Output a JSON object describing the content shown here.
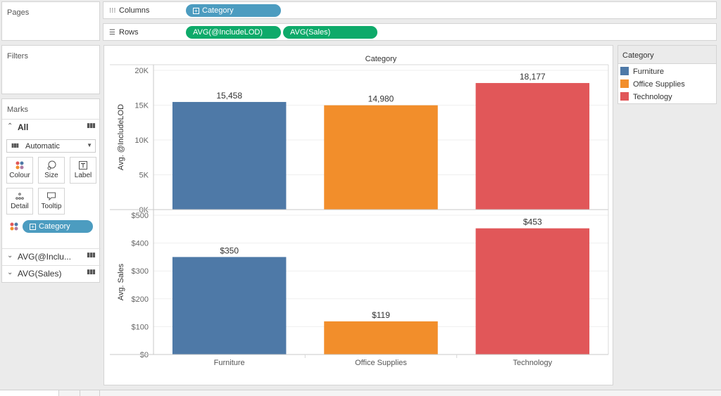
{
  "left_pane": {
    "pages_title": "Pages",
    "filters_title": "Filters",
    "marks_title": "Marks",
    "all_label": "All",
    "mark_type": "Automatic",
    "buttons": {
      "colour": "Colour",
      "size": "Size",
      "label": "Label",
      "detail": "Detail",
      "tooltip": "Tooltip"
    },
    "colour_pill": "Category",
    "measure_rows": [
      "AVG(@Inclu...",
      "AVG(Sales)"
    ]
  },
  "shelves": {
    "columns_label": "Columns",
    "rows_label": "Rows",
    "columns_pills": [
      "Category"
    ],
    "rows_pills": [
      "AVG(@IncludeLOD)",
      "AVG(Sales)"
    ]
  },
  "legend": {
    "title": "Category",
    "items": [
      {
        "label": "Furniture",
        "color": "#4e79a7"
      },
      {
        "label": "Office Supplies",
        "color": "#f28e2b"
      },
      {
        "label": "Technology",
        "color": "#e15759"
      }
    ]
  },
  "chart_data": [
    {
      "type": "bar",
      "title": "Category",
      "categories": [
        "Furniture",
        "Office Supplies",
        "Technology"
      ],
      "values": [
        15458,
        14980,
        18177
      ],
      "value_labels": [
        "15,458",
        "14,980",
        "18,177"
      ],
      "ylabel": "Avg. @IncludeLOD",
      "ylim": [
        0,
        20000
      ],
      "yticks": [
        "0K",
        "5K",
        "10K",
        "15K",
        "20K"
      ],
      "colors": [
        "#4e79a7",
        "#f28e2b",
        "#e15759"
      ]
    },
    {
      "type": "bar",
      "categories": [
        "Furniture",
        "Office Supplies",
        "Technology"
      ],
      "values": [
        350,
        119,
        453
      ],
      "value_labels": [
        "$350",
        "$119",
        "$453"
      ],
      "ylabel": "Avg. Sales",
      "ylim": [
        0,
        500
      ],
      "yticks": [
        "$0",
        "$100",
        "$200",
        "$300",
        "$400",
        "$500"
      ],
      "colors": [
        "#4e79a7",
        "#f28e2b",
        "#e15759"
      ],
      "xlabel": ""
    }
  ]
}
